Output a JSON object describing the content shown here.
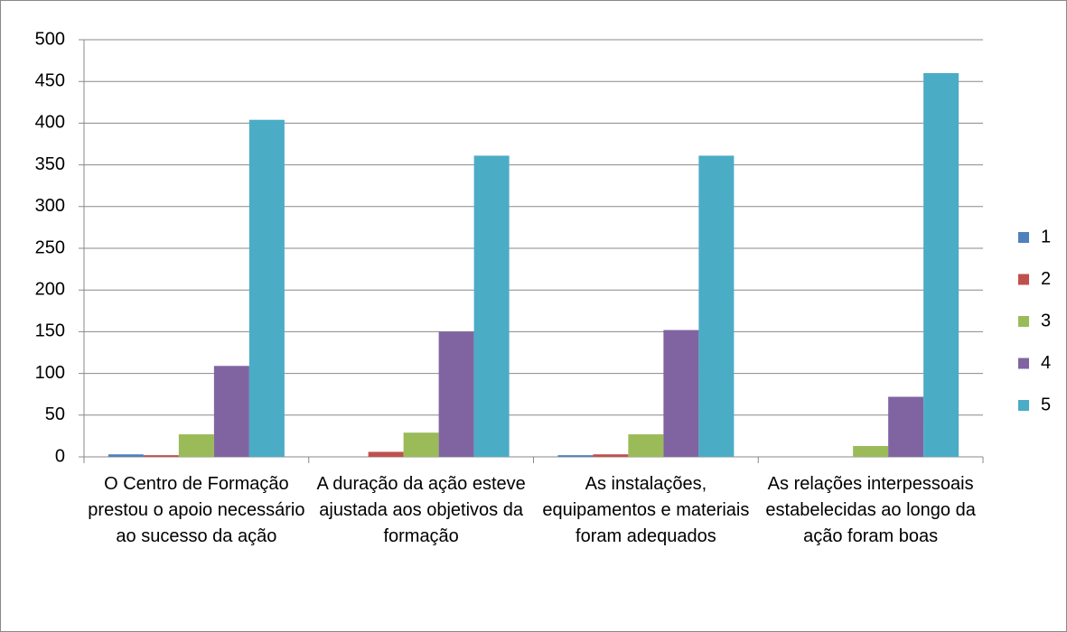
{
  "chart_data": {
    "type": "bar",
    "categories": [
      "O Centro de Formação prestou o apoio necessário ao sucesso da ação",
      "A duração da ação esteve ajustada aos objetivos da formação",
      "As instalações, equipamentos e materiais foram adequados",
      "As relações interpessoais estabelecidas ao longo da ação foram boas"
    ],
    "series": [
      {
        "name": "1",
        "color": "#4f81bd",
        "values": [
          3,
          0,
          2,
          0
        ]
      },
      {
        "name": "2",
        "color": "#c0504d",
        "values": [
          2,
          6,
          3,
          0
        ]
      },
      {
        "name": "3",
        "color": "#9bbb59",
        "values": [
          27,
          29,
          27,
          13
        ]
      },
      {
        "name": "4",
        "color": "#8064a2",
        "values": [
          109,
          150,
          152,
          72
        ]
      },
      {
        "name": "5",
        "color": "#4bacc6",
        "values": [
          404,
          361,
          361,
          460
        ]
      }
    ],
    "ylim": [
      0,
      500
    ],
    "yticks": [
      0,
      50,
      100,
      150,
      200,
      250,
      300,
      350,
      400,
      450,
      500
    ],
    "grid": true,
    "legend": "right"
  }
}
